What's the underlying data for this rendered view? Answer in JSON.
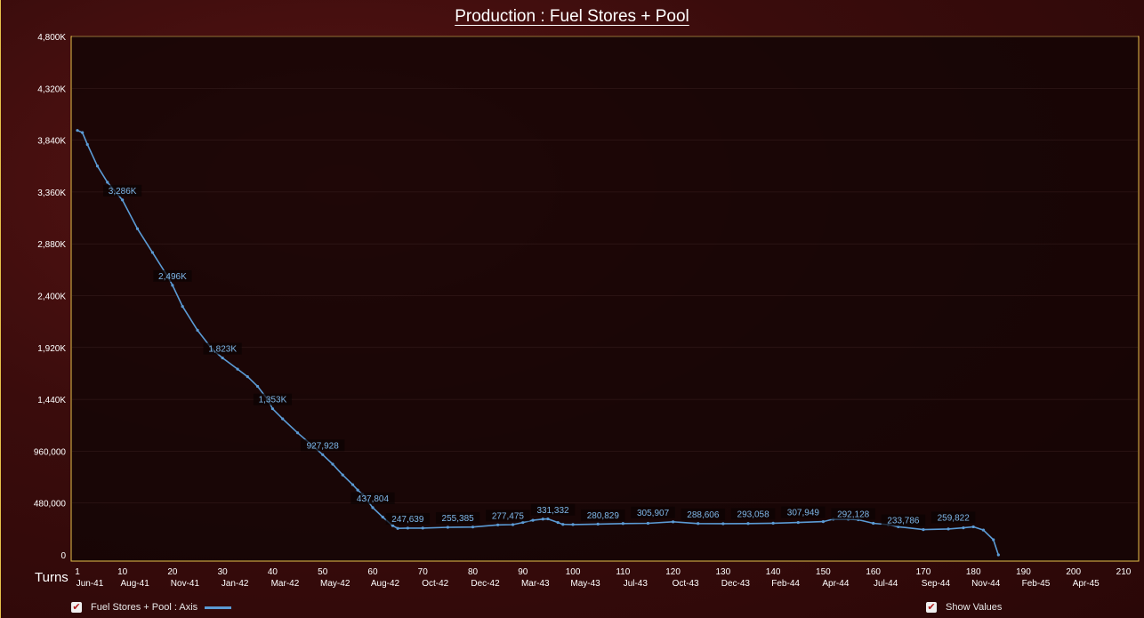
{
  "title": "Production : Fuel Stores + Pool",
  "x_axis_title": "Turns",
  "legend": {
    "label": "Fuel Stores + Pool : Axis",
    "checked": true
  },
  "show_values": {
    "label": "Show Values",
    "checked": true
  },
  "colors": {
    "line": "#5b9bd5",
    "frame": "#e6c04a",
    "plot_bg": "#120505",
    "label_text": "#7fb8ea"
  },
  "chart_data": {
    "type": "line",
    "title": "Production : Fuel Stores + Pool",
    "xlabel": "Turns",
    "ylabel": "",
    "xlim": [
      1,
      210
    ],
    "ylim": [
      0,
      4800000
    ],
    "y_ticks": [
      {
        "v": 0,
        "label": "0"
      },
      {
        "v": 480000,
        "label": "480,000"
      },
      {
        "v": 960000,
        "label": "960,000"
      },
      {
        "v": 1440000,
        "label": "1,440K"
      },
      {
        "v": 1920000,
        "label": "1,920K"
      },
      {
        "v": 2400000,
        "label": "2,400K"
      },
      {
        "v": 2880000,
        "label": "2,880K"
      },
      {
        "v": 3360000,
        "label": "3,360K"
      },
      {
        "v": 3840000,
        "label": "3,840K"
      },
      {
        "v": 4320000,
        "label": "4,320K"
      },
      {
        "v": 4800000,
        "label": "4,800K"
      }
    ],
    "x_ticks": [
      {
        "v": 1,
        "turn": "1",
        "date": "Jun-41"
      },
      {
        "v": 10,
        "turn": "10",
        "date": "Aug-41"
      },
      {
        "v": 20,
        "turn": "20",
        "date": "Nov-41"
      },
      {
        "v": 30,
        "turn": "30",
        "date": "Jan-42"
      },
      {
        "v": 40,
        "turn": "40",
        "date": "Mar-42"
      },
      {
        "v": 50,
        "turn": "50",
        "date": "May-42"
      },
      {
        "v": 60,
        "turn": "60",
        "date": "Aug-42"
      },
      {
        "v": 70,
        "turn": "70",
        "date": "Oct-42"
      },
      {
        "v": 80,
        "turn": "80",
        "date": "Dec-42"
      },
      {
        "v": 90,
        "turn": "90",
        "date": "Mar-43"
      },
      {
        "v": 100,
        "turn": "100",
        "date": "May-43"
      },
      {
        "v": 110,
        "turn": "110",
        "date": "Jul-43"
      },
      {
        "v": 120,
        "turn": "120",
        "date": "Oct-43"
      },
      {
        "v": 130,
        "turn": "130",
        "date": "Dec-43"
      },
      {
        "v": 140,
        "turn": "140",
        "date": "Feb-44"
      },
      {
        "v": 150,
        "turn": "150",
        "date": "Apr-44"
      },
      {
        "v": 160,
        "turn": "160",
        "date": "Jul-44"
      },
      {
        "v": 170,
        "turn": "170",
        "date": "Sep-44"
      },
      {
        "v": 180,
        "turn": "180",
        "date": "Nov-44"
      },
      {
        "v": 190,
        "turn": "190",
        "date": "Feb-45"
      },
      {
        "v": 200,
        "turn": "200",
        "date": "Apr-45"
      },
      {
        "v": 210,
        "turn": "210",
        "date": ""
      }
    ],
    "series": [
      {
        "name": "Fuel Stores + Pool : Axis",
        "x": [
          1,
          2,
          3,
          5,
          7,
          10,
          13,
          16,
          19,
          20,
          22,
          25,
          28,
          30,
          33,
          35,
          37,
          39,
          40,
          42,
          45,
          48,
          50,
          52,
          54,
          56,
          57,
          58,
          60,
          62,
          64,
          65,
          67,
          70,
          75,
          80,
          85,
          88,
          90,
          92,
          94,
          95,
          97,
          98,
          100,
          105,
          110,
          115,
          120,
          125,
          130,
          135,
          140,
          145,
          150,
          152,
          155,
          157,
          160,
          163,
          165,
          170,
          175,
          178,
          180,
          182,
          184,
          185
        ],
        "y": [
          3930000,
          3910000,
          3800000,
          3600000,
          3450000,
          3286000,
          3020000,
          2800000,
          2580000,
          2496000,
          2300000,
          2080000,
          1900000,
          1823000,
          1720000,
          1650000,
          1560000,
          1440000,
          1353000,
          1260000,
          1130000,
          1010000,
          927928,
          840000,
          740000,
          650000,
          600000,
          560000,
          437804,
          350000,
          270000,
          245000,
          247639,
          248000,
          255385,
          258000,
          277475,
          280000,
          300000,
          320000,
          331332,
          333000,
          300000,
          282000,
          280829,
          285000,
          290000,
          292000,
          305907,
          290000,
          288606,
          290000,
          293058,
          300000,
          307949,
          330000,
          330000,
          325000,
          292128,
          280000,
          260000,
          233786,
          240000,
          250000,
          259822,
          230000,
          140000,
          0
        ]
      }
    ],
    "data_labels": [
      {
        "x": 10,
        "y": 3286000,
        "text": "3,286K"
      },
      {
        "x": 20,
        "y": 2496000,
        "text": "2,496K"
      },
      {
        "x": 30,
        "y": 1823000,
        "text": "1,823K"
      },
      {
        "x": 40,
        "y": 1353000,
        "text": "1,353K"
      },
      {
        "x": 50,
        "y": 927928,
        "text": "927,928"
      },
      {
        "x": 60,
        "y": 437804,
        "text": "437,804"
      },
      {
        "x": 67,
        "y": 247639,
        "text": "247,639"
      },
      {
        "x": 77,
        "y": 255385,
        "text": "255,385"
      },
      {
        "x": 87,
        "y": 277475,
        "text": "277,475"
      },
      {
        "x": 96,
        "y": 331332,
        "text": "331,332"
      },
      {
        "x": 106,
        "y": 280829,
        "text": "280,829"
      },
      {
        "x": 116,
        "y": 305907,
        "text": "305,907"
      },
      {
        "x": 126,
        "y": 288606,
        "text": "288,606"
      },
      {
        "x": 136,
        "y": 293058,
        "text": "293,058"
      },
      {
        "x": 146,
        "y": 307949,
        "text": "307,949"
      },
      {
        "x": 156,
        "y": 292128,
        "text": "292,128"
      },
      {
        "x": 166,
        "y": 233786,
        "text": "233,786"
      },
      {
        "x": 176,
        "y": 259822,
        "text": "259,822"
      }
    ],
    "grid": true,
    "legend_position": "bottom-left"
  }
}
